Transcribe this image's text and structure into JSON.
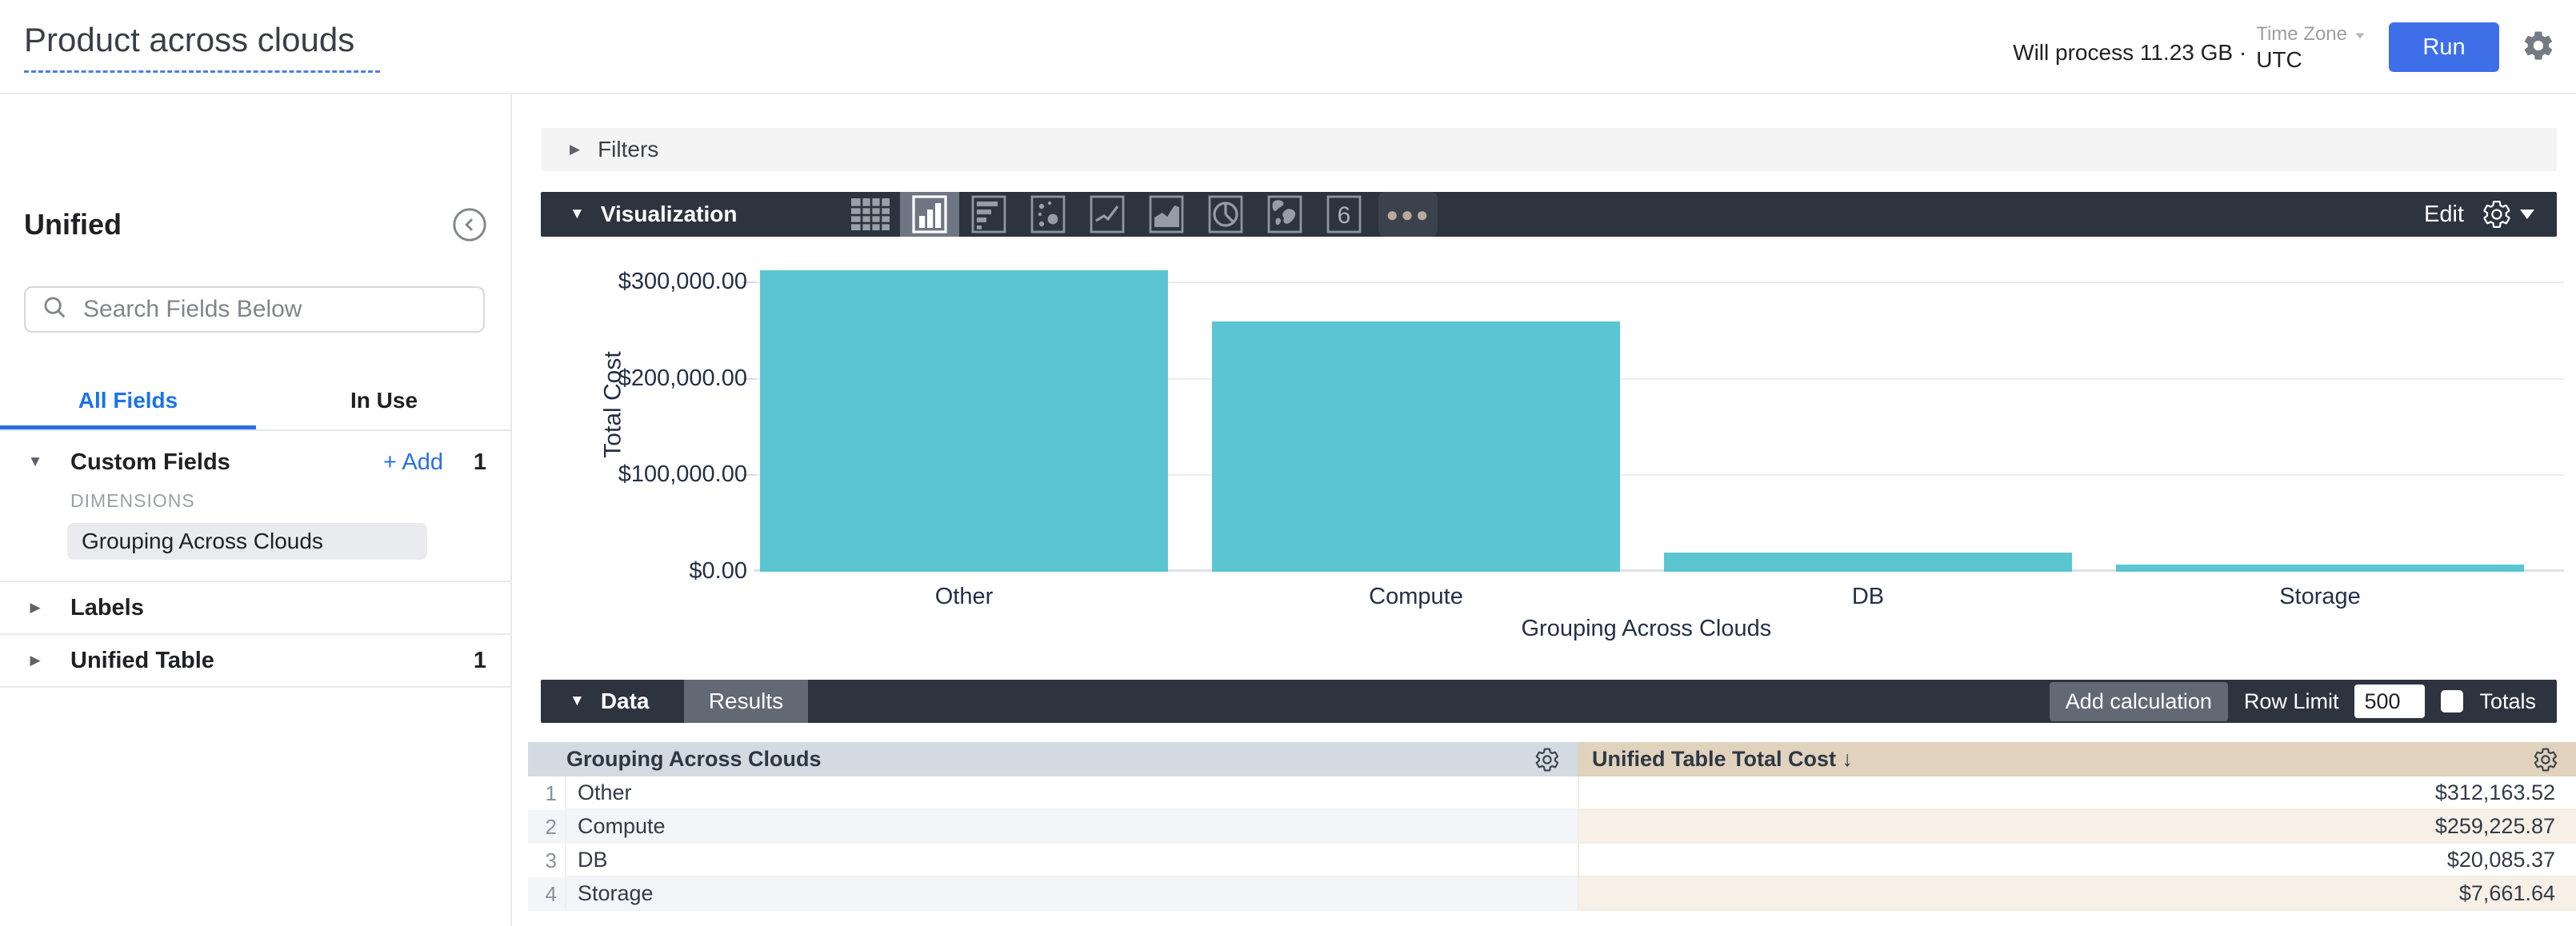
{
  "header": {
    "title": "Product across clouds",
    "process_text": "Will process 11.23 GB ·",
    "timezone": {
      "label": "Time Zone",
      "value": "UTC"
    },
    "run_label": "Run"
  },
  "sidebar": {
    "view_name": "Unified",
    "search_placeholder": "Search Fields Below",
    "tabs": [
      {
        "label": "All Fields",
        "active": true
      },
      {
        "label": "In Use",
        "active": false
      }
    ],
    "custom_fields": {
      "label": "Custom Fields",
      "add_label": "+ Add",
      "count": "1",
      "group_label": "DIMENSIONS",
      "fields": [
        "Grouping Across Clouds"
      ]
    },
    "labels_section": {
      "label": "Labels"
    },
    "unified_table_section": {
      "label": "Unified Table",
      "count": "1"
    }
  },
  "filters": {
    "label": "Filters"
  },
  "visualization": {
    "label": "Visualization",
    "edit_label": "Edit",
    "icon_types": [
      "table",
      "column-chart",
      "bar-chart",
      "scatter",
      "line-chart",
      "area-chart",
      "pie-chart",
      "map",
      "single-value",
      "more"
    ],
    "selected_icon": "column-chart",
    "single_value_glyph": "6"
  },
  "chart_data": {
    "type": "bar",
    "categories": [
      "Other",
      "Compute",
      "DB",
      "Storage"
    ],
    "values": [
      312163.52,
      259225.87,
      20085.37,
      7661.64
    ],
    "title": "",
    "xlabel": "Grouping Across Clouds",
    "ylabel": "Total Cost",
    "ylim": [
      0,
      347000
    ],
    "yticks": [
      {
        "label": "$0.00",
        "value": 0
      },
      {
        "label": "$100,000.00",
        "value": 100000
      },
      {
        "label": "$200,000.00",
        "value": 200000
      },
      {
        "label": "$300,000.00",
        "value": 300000
      }
    ],
    "bar_color": "#5bc5d2",
    "grid": true,
    "legend": false
  },
  "data_panel": {
    "label": "Data",
    "results_tab": "Results",
    "add_calculation_label": "Add calculation",
    "row_limit_label": "Row Limit",
    "row_limit_value": "500",
    "totals_label": "Totals",
    "totals_checked": false
  },
  "table": {
    "columns": [
      {
        "label": "Grouping Across Clouds",
        "sort": ""
      },
      {
        "label": "Unified Table Total Cost",
        "sort": "↓"
      }
    ],
    "rows": [
      {
        "index": "1",
        "dimension": "Other",
        "value": "$312,163.52"
      },
      {
        "index": "2",
        "dimension": "Compute",
        "value": "$259,225.87"
      },
      {
        "index": "3",
        "dimension": "DB",
        "value": "$20,085.37"
      },
      {
        "index": "4",
        "dimension": "Storage",
        "value": "$7,661.64"
      }
    ]
  },
  "colors": {
    "accent_blue": "#3e6fe8",
    "link_blue": "#2b6fe3",
    "bar_teal": "#5bc5d2",
    "toolbar_dark": "#2d3440",
    "dimension_header_bg": "#d2dbe1",
    "measure_header_bg": "#e0d2bd"
  }
}
